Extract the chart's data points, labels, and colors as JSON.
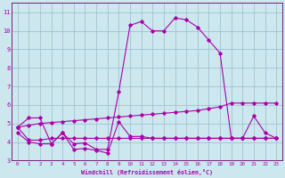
{
  "xlabel": "Windchill (Refroidissement éolien,°C)",
  "bg_color": "#cce8ee",
  "grid_color": "#99bbcc",
  "line_color": "#aa00aa",
  "spine_color": "#660066",
  "xlim": [
    -0.5,
    23.5
  ],
  "ylim": [
    3,
    11.5
  ],
  "yticks": [
    3,
    4,
    5,
    6,
    7,
    8,
    9,
    10,
    11
  ],
  "xticks": [
    0,
    1,
    2,
    3,
    4,
    5,
    6,
    7,
    8,
    9,
    10,
    11,
    12,
    13,
    14,
    15,
    16,
    17,
    18,
    19,
    20,
    21,
    22,
    23
  ],
  "series1_x": [
    0,
    1,
    2,
    3,
    4,
    5,
    6,
    7,
    8,
    9,
    10,
    11,
    12,
    13,
    14,
    15,
    16,
    17,
    18,
    19,
    20,
    21,
    22,
    23
  ],
  "series1_y": [
    4.8,
    5.3,
    5.3,
    3.9,
    4.5,
    3.9,
    3.95,
    3.6,
    3.6,
    6.7,
    10.3,
    10.5,
    10.0,
    10.0,
    10.7,
    10.6,
    10.2,
    9.5,
    8.8,
    4.2,
    4.2,
    5.4,
    4.5,
    4.2
  ],
  "series2_x": [
    0,
    1,
    2,
    3,
    4,
    5,
    6,
    7,
    8,
    9,
    10,
    11,
    12,
    13,
    14,
    15,
    16,
    17,
    18,
    19,
    20,
    21,
    22,
    23
  ],
  "series2_y": [
    4.5,
    4.0,
    3.9,
    3.9,
    4.5,
    3.6,
    3.65,
    3.55,
    3.4,
    5.1,
    4.3,
    4.3,
    4.2,
    4.2,
    4.2,
    4.2,
    4.2,
    4.2,
    4.2,
    4.2,
    4.2,
    4.2,
    4.2,
    4.2
  ],
  "series3_x": [
    0,
    1,
    2,
    3,
    4,
    5,
    6,
    7,
    8,
    9,
    10,
    11,
    12,
    13,
    14,
    15,
    16,
    17,
    18,
    19,
    20,
    21,
    22,
    23
  ],
  "series3_y": [
    4.8,
    4.9,
    5.0,
    5.05,
    5.1,
    5.15,
    5.2,
    5.25,
    5.3,
    5.35,
    5.4,
    5.45,
    5.5,
    5.55,
    5.6,
    5.65,
    5.7,
    5.8,
    5.9,
    6.1,
    6.1,
    6.1,
    6.1,
    6.1
  ],
  "series4_x": [
    0,
    1,
    2,
    3,
    4,
    5,
    6,
    7,
    8,
    9,
    10,
    11,
    12,
    13,
    14,
    15,
    16,
    17,
    18,
    19,
    20,
    21,
    22,
    23
  ],
  "series4_y": [
    4.8,
    4.1,
    4.1,
    4.2,
    4.2,
    4.2,
    4.2,
    4.2,
    4.2,
    4.2,
    4.2,
    4.2,
    4.2,
    4.2,
    4.2,
    4.2,
    4.2,
    4.2,
    4.2,
    4.2,
    4.2,
    4.2,
    4.2,
    4.2
  ],
  "marker": "D",
  "markersize": 1.8,
  "linewidth": 0.8
}
